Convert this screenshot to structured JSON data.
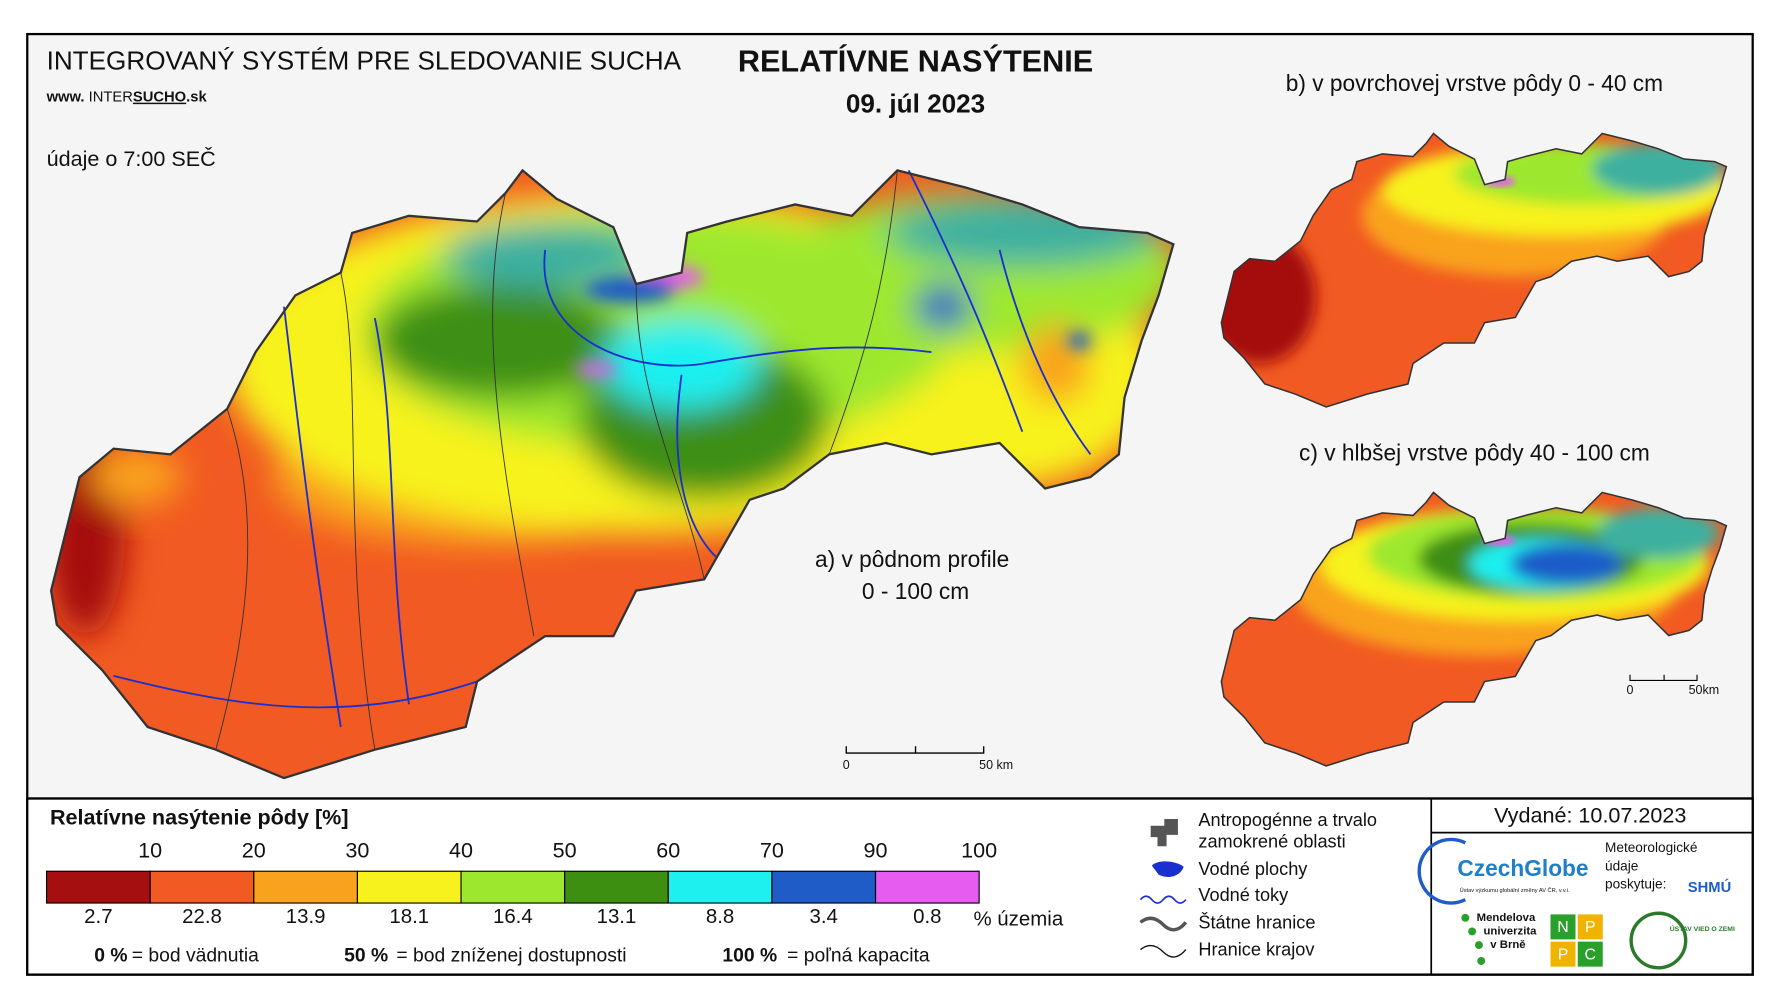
{
  "header": {
    "system": "INTEGROVANÝ SYSTÉM PRE SLEDOVANIE SUCHA",
    "web_prefix": "www. ",
    "web_inter": "INTER",
    "web_sucho": "SUCHO",
    "web_suffix": ".sk",
    "time_note": "údaje o 7:00 SEČ"
  },
  "title": {
    "main": "RELATÍVNE NASÝTENIE",
    "date": "09. júl 2023"
  },
  "maps": {
    "a": {
      "label_line1": "a) v pôdnom profile",
      "label_line2": "0 - 100 cm",
      "scale_start": "0",
      "scale_end": "50 km"
    },
    "b": {
      "label": "b) v povrchovej vrstve pôdy 0 - 40 cm"
    },
    "c": {
      "label": "c) v hlbšej vrstve pôdy 40 - 100 cm",
      "scale_start": "0",
      "scale_end": "50km"
    }
  },
  "legend": {
    "title": "Relatívne nasýtenie pôdy [%]",
    "thresholds": [
      10,
      20,
      30,
      40,
      50,
      60,
      70,
      90,
      100
    ],
    "classes": [
      {
        "color": "#a50f0f",
        "share": 2.7
      },
      {
        "color": "#f15a22",
        "share": 22.8
      },
      {
        "color": "#f9a21e",
        "share": 13.9
      },
      {
        "color": "#f7f21d",
        "share": 18.1
      },
      {
        "color": "#9de82e",
        "share": 16.4
      },
      {
        "color": "#3d8f12",
        "share": 13.1
      },
      {
        "color": "#1ef0f0",
        "share": 8.8
      },
      {
        "color": "#1f5cc8",
        "share": 3.4
      },
      {
        "color": "#e65cf0",
        "share": 0.8
      }
    ],
    "share_unit": "% územia",
    "notes": [
      {
        "value": "0 %",
        "text": "= bod vädnutia"
      },
      {
        "value": "50 %",
        "text": "= bod zníženej dostupnosti"
      },
      {
        "value": "100 %",
        "text": "= poľná kapacita"
      }
    ]
  },
  "symbols": {
    "anthropogenic_line1": "Antropogénne a trvalo",
    "anthropogenic_line2": "zamokrené oblasti",
    "water_bodies": "Vodné plochy",
    "rivers": "Vodné toky",
    "state_border": "Štátne hranice",
    "region_border": "Hranice krajov"
  },
  "issued": "Vydané: 10.07.2023",
  "partners": {
    "czechglobe": "CzechGlobe",
    "czechglobe_sub": "Ústav výzkumu globální změny AV ČR, v.v.i.",
    "meteo_line1": "Meteorologické",
    "meteo_line2": "údaje",
    "meteo_line3": "poskytuje:",
    "shmu": "SHMÚ",
    "mendel_line1": "Mendelova",
    "mendel_line2": "univerzita",
    "mendel_line3": "v Brně",
    "nppc": [
      "N",
      "P",
      "P",
      "C"
    ],
    "uvz": "ÚSTAV VIED O ZEMI"
  }
}
